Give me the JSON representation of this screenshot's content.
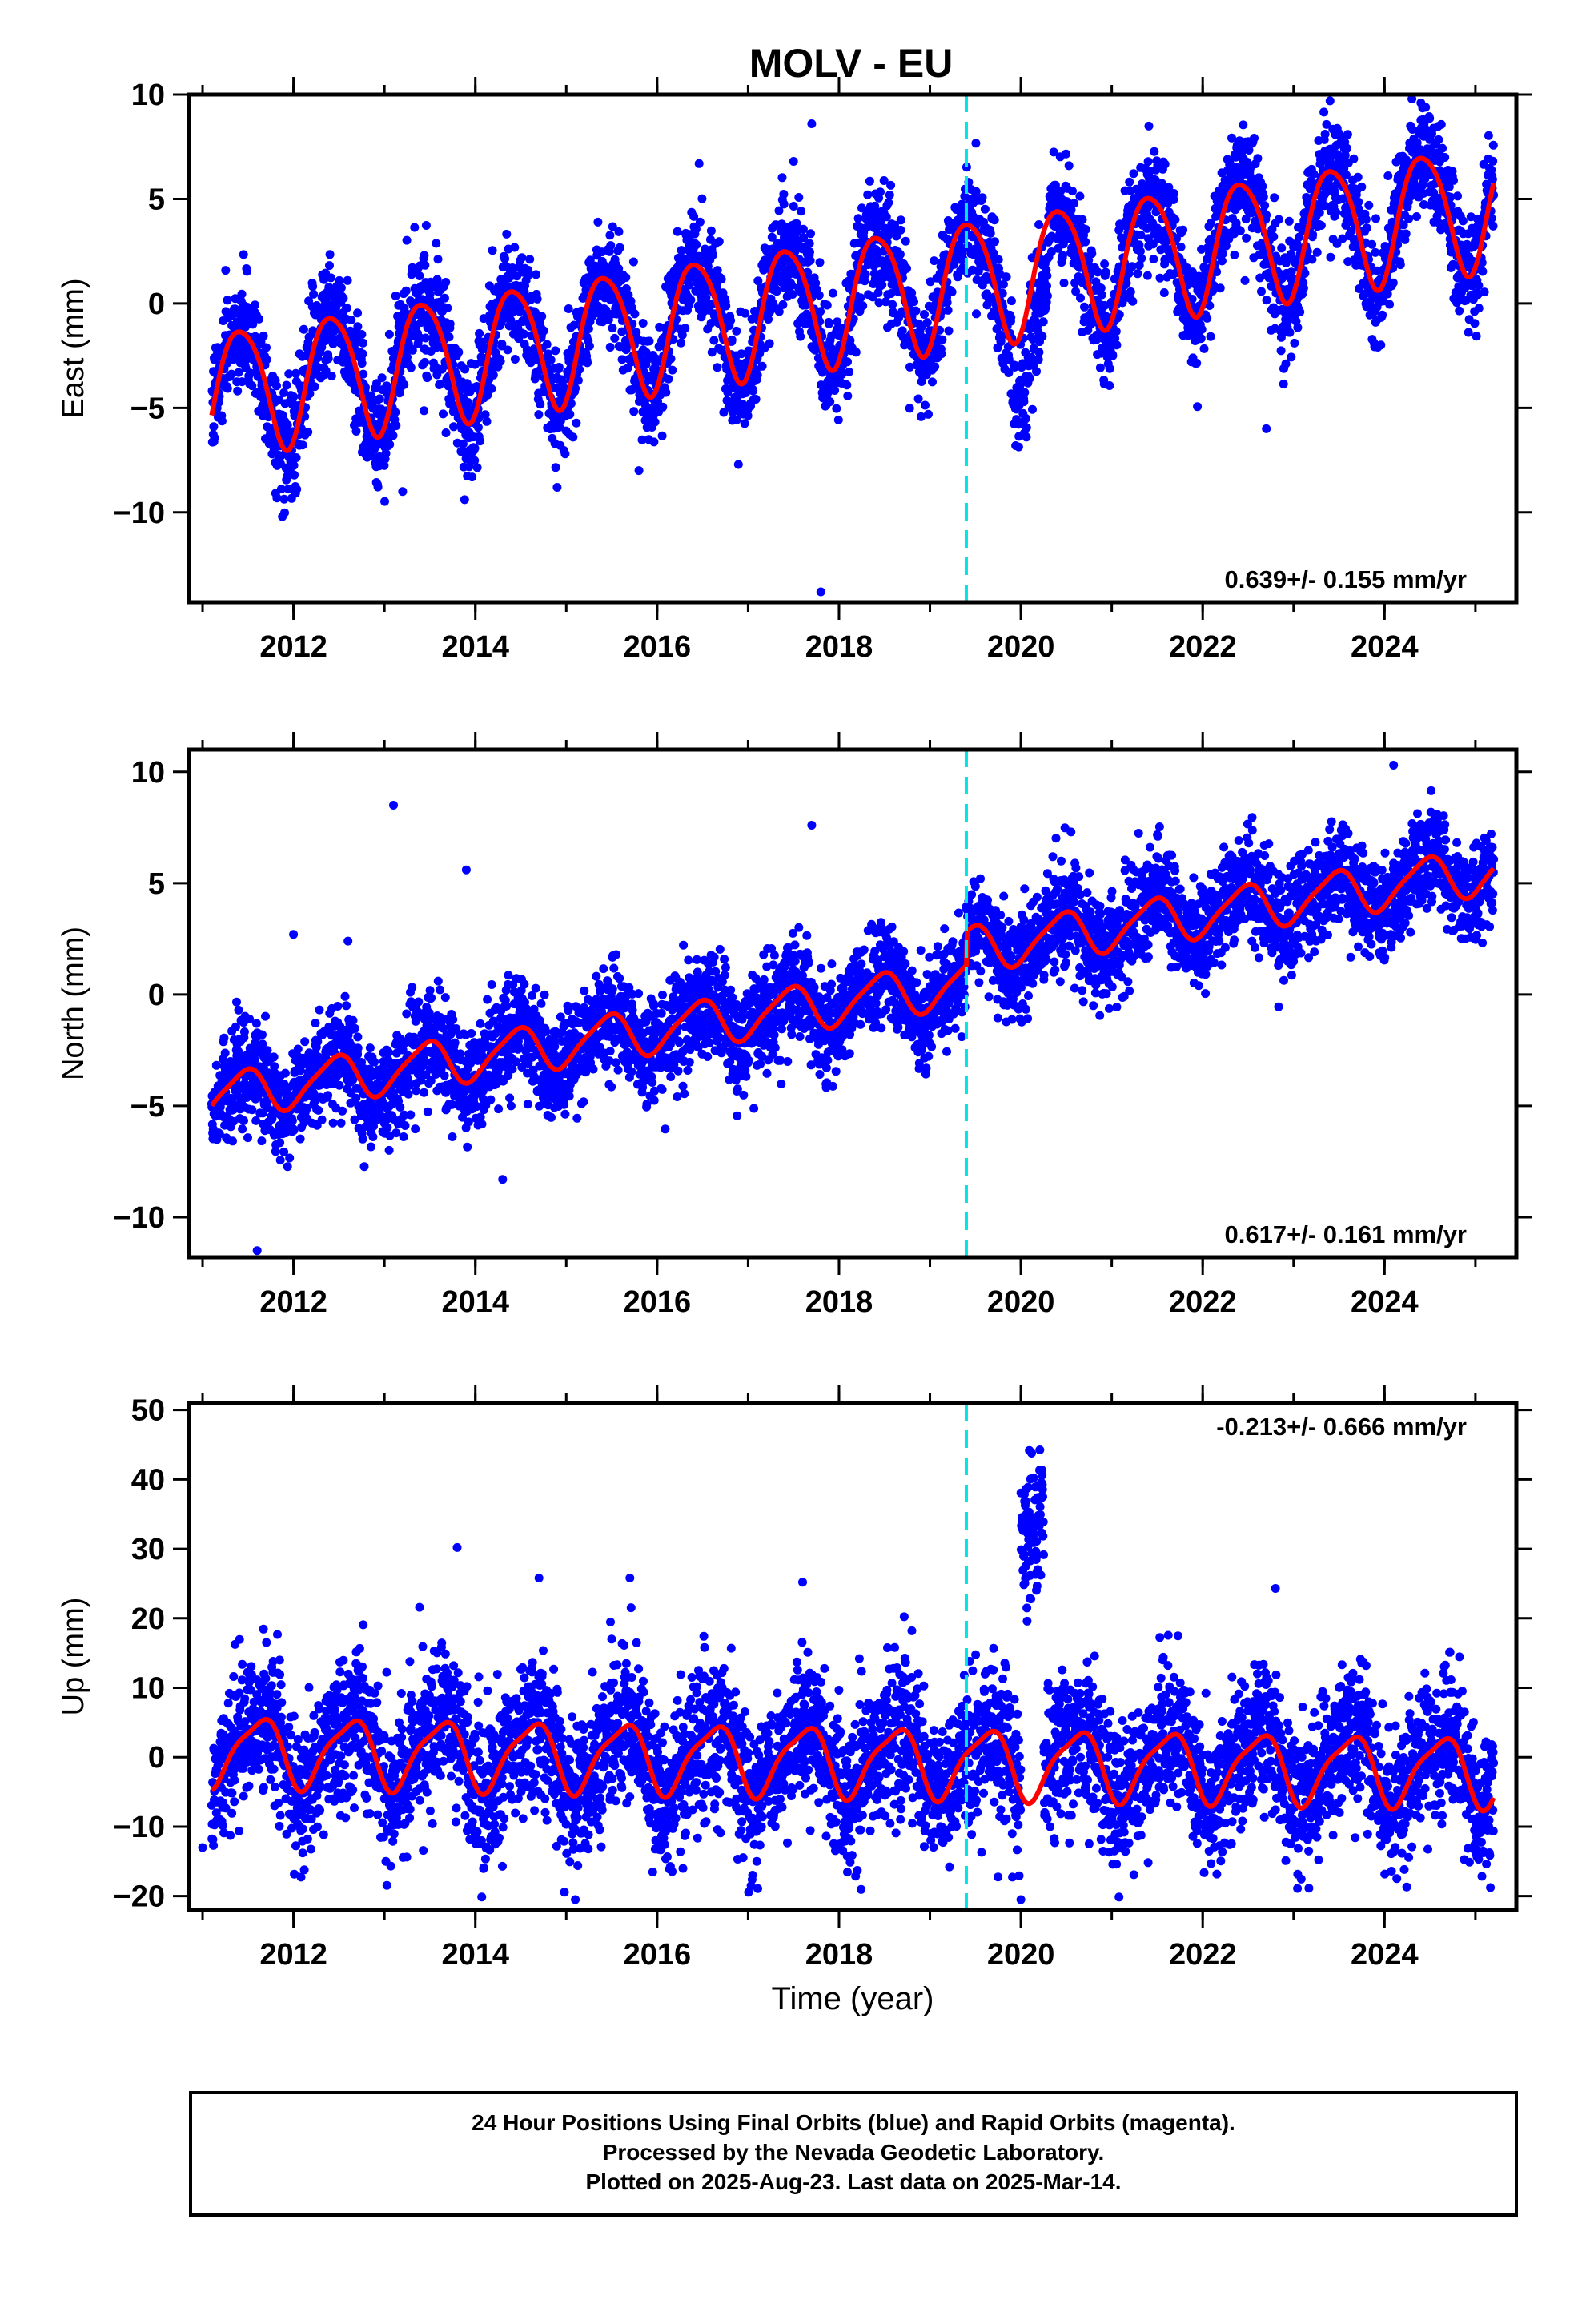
{
  "title": "MOLV - EU",
  "colors": {
    "points": "#0000ff",
    "model": "#ff0000",
    "event": "#00e5e5",
    "frame": "#000000"
  },
  "chart_data": [
    {
      "type": "scatter",
      "panel": "east",
      "ylabel": "East (mm)",
      "xlabel": "",
      "xlim": [
        2010.85,
        2025.45
      ],
      "ylim": [
        -14.3,
        10
      ],
      "x_ticks": [
        2012,
        2014,
        2016,
        2018,
        2020,
        2022,
        2024
      ],
      "x_tick_labels": [
        "2012",
        "2014",
        "2016",
        "2018",
        "2020",
        "2022",
        "2024"
      ],
      "y_ticks": [
        -10,
        -5,
        0,
        5,
        10
      ],
      "y_tick_labels": [
        "−10",
        "−5",
        "0",
        "5",
        "10"
      ],
      "rate": "0.639+/- 0.155 mm/yr",
      "rate_position": "bottom-right",
      "event_line_x": 2019.4,
      "data_range": [
        2011.1,
        2025.2
      ],
      "model": {
        "intercept": -4.2,
        "slope": 0.639,
        "annual_amp": 3.0,
        "annual_peak": 0.42,
        "semi_amp": 0.4,
        "semi_peak": 0.2
      },
      "noise_sd": 1.3,
      "anomalies": [
        {
          "x_range": [
            2019.9,
            2020.3
          ],
          "offset": -2.8
        }
      ],
      "outliers": [
        [
          2013.2,
          -9.0
        ],
        [
          2014.9,
          -8.8
        ],
        [
          2015.8,
          -8.0
        ],
        [
          2017.8,
          -13.8
        ],
        [
          2017.7,
          8.6
        ],
        [
          2017.5,
          6.8
        ],
        [
          2022.7,
          -6.0
        ],
        [
          2024.4,
          9.6
        ]
      ]
    },
    {
      "type": "scatter",
      "panel": "north",
      "ylabel": "North (mm)",
      "xlabel": "",
      "xlim": [
        2010.85,
        2025.45
      ],
      "ylim": [
        -11.8,
        11
      ],
      "x_ticks": [
        2012,
        2014,
        2016,
        2018,
        2020,
        2022,
        2024
      ],
      "x_tick_labels": [
        "2012",
        "2014",
        "2016",
        "2018",
        "2020",
        "2022",
        "2024"
      ],
      "y_ticks": [
        -10,
        -5,
        0,
        5,
        10
      ],
      "y_tick_labels": [
        "−10",
        "−5",
        "0",
        "5",
        "10"
      ],
      "rate": "0.617+/- 0.161 mm/yr",
      "rate_position": "bottom-right",
      "event_line_x": 2019.4,
      "data_range": [
        2011.1,
        2025.2
      ],
      "model": {
        "intercept": -4.6,
        "slope": 0.617,
        "annual_amp": 1.0,
        "annual_peak": 0.45,
        "semi_amp": 0.2,
        "semi_peak": 0.1,
        "step_x": 2019.4,
        "step": 1.5
      },
      "noise_sd": 1.15,
      "anomalies": [],
      "outliers": [
        [
          2011.6,
          -11.5
        ],
        [
          2012.0,
          2.7
        ],
        [
          2013.1,
          8.5
        ],
        [
          2013.9,
          5.6
        ],
        [
          2012.6,
          2.4
        ],
        [
          2014.3,
          -8.3
        ],
        [
          2017.7,
          7.6
        ],
        [
          2024.1,
          10.3
        ]
      ]
    },
    {
      "type": "scatter",
      "panel": "up",
      "ylabel": "Up (mm)",
      "xlabel": "Time (year)",
      "xlim": [
        2010.85,
        2025.45
      ],
      "ylim": [
        -22,
        51
      ],
      "x_ticks": [
        2012,
        2014,
        2016,
        2018,
        2020,
        2022,
        2024
      ],
      "x_tick_labels": [
        "2012",
        "2014",
        "2016",
        "2018",
        "2020",
        "2022",
        "2024"
      ],
      "y_ticks": [
        -20,
        -10,
        0,
        10,
        20,
        30,
        40,
        50
      ],
      "y_tick_labels": [
        "−20",
        "−10",
        "0",
        "10",
        "20",
        "30",
        "40",
        "50"
      ],
      "rate": "-0.213+/- 0.666 mm/yr",
      "rate_position": "top-right",
      "event_line_x": 2019.4,
      "data_range": [
        2011.1,
        2025.2
      ],
      "model": {
        "intercept": 1.0,
        "slope": -0.213,
        "annual_amp": 4.8,
        "annual_peak": 0.62,
        "semi_amp": 1.2,
        "semi_peak": 0.3
      },
      "noise_sd": 5.2,
      "anomalies": [
        {
          "x_range": [
            2020.0,
            2020.25
          ],
          "offset": 38
        }
      ],
      "outliers": [
        [
          2013.8,
          30.2
        ],
        [
          2014.7,
          25.8
        ],
        [
          2015.7,
          25.8
        ],
        [
          2017.6,
          25.2
        ],
        [
          2022.8,
          24.3
        ],
        [
          2020.0,
          -20.5
        ],
        [
          2015.1,
          -20.5
        ],
        [
          2011.0,
          -13.0
        ]
      ]
    }
  ],
  "footer": {
    "line1": "24 Hour Positions Using Final Orbits (blue) and Rapid Orbits (magenta).",
    "line2": "Processed by the Nevada Geodetic Laboratory.",
    "line3": "Plotted on 2025-Aug-23. Last data on 2025-Mar-14."
  }
}
